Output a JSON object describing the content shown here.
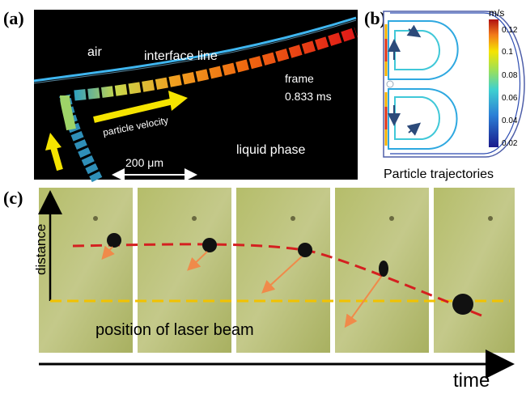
{
  "panels": {
    "a": {
      "letter": "(a)",
      "labels": {
        "air": "air",
        "interface": "interface line",
        "frame_line1": "frame",
        "frame_line2": "0.833 ms",
        "particle_velocity": "particle velocity",
        "scale": "200 μm",
        "liquid": "liquid phase"
      }
    },
    "b": {
      "letter": "(b)",
      "unit": "m/s",
      "colorbar_ticks": [
        "0.12",
        "0.1",
        "0.08",
        "0.06",
        "0.04",
        "0.02"
      ],
      "caption": "Particle trajectories"
    },
    "c": {
      "letter": "(c)",
      "y_axis_label": "distance",
      "laser_label": "position of laser beam",
      "x_axis_label": "time",
      "frame_count": 5
    }
  },
  "colors": {
    "interface_line": "#3fb6f0",
    "yellow_arrow": "#f5e400",
    "red_dashed": "#d42020",
    "laser_dashed": "#f2c200",
    "orange_arrow": "#f08a4a",
    "frame_background": "#b9bf72"
  }
}
